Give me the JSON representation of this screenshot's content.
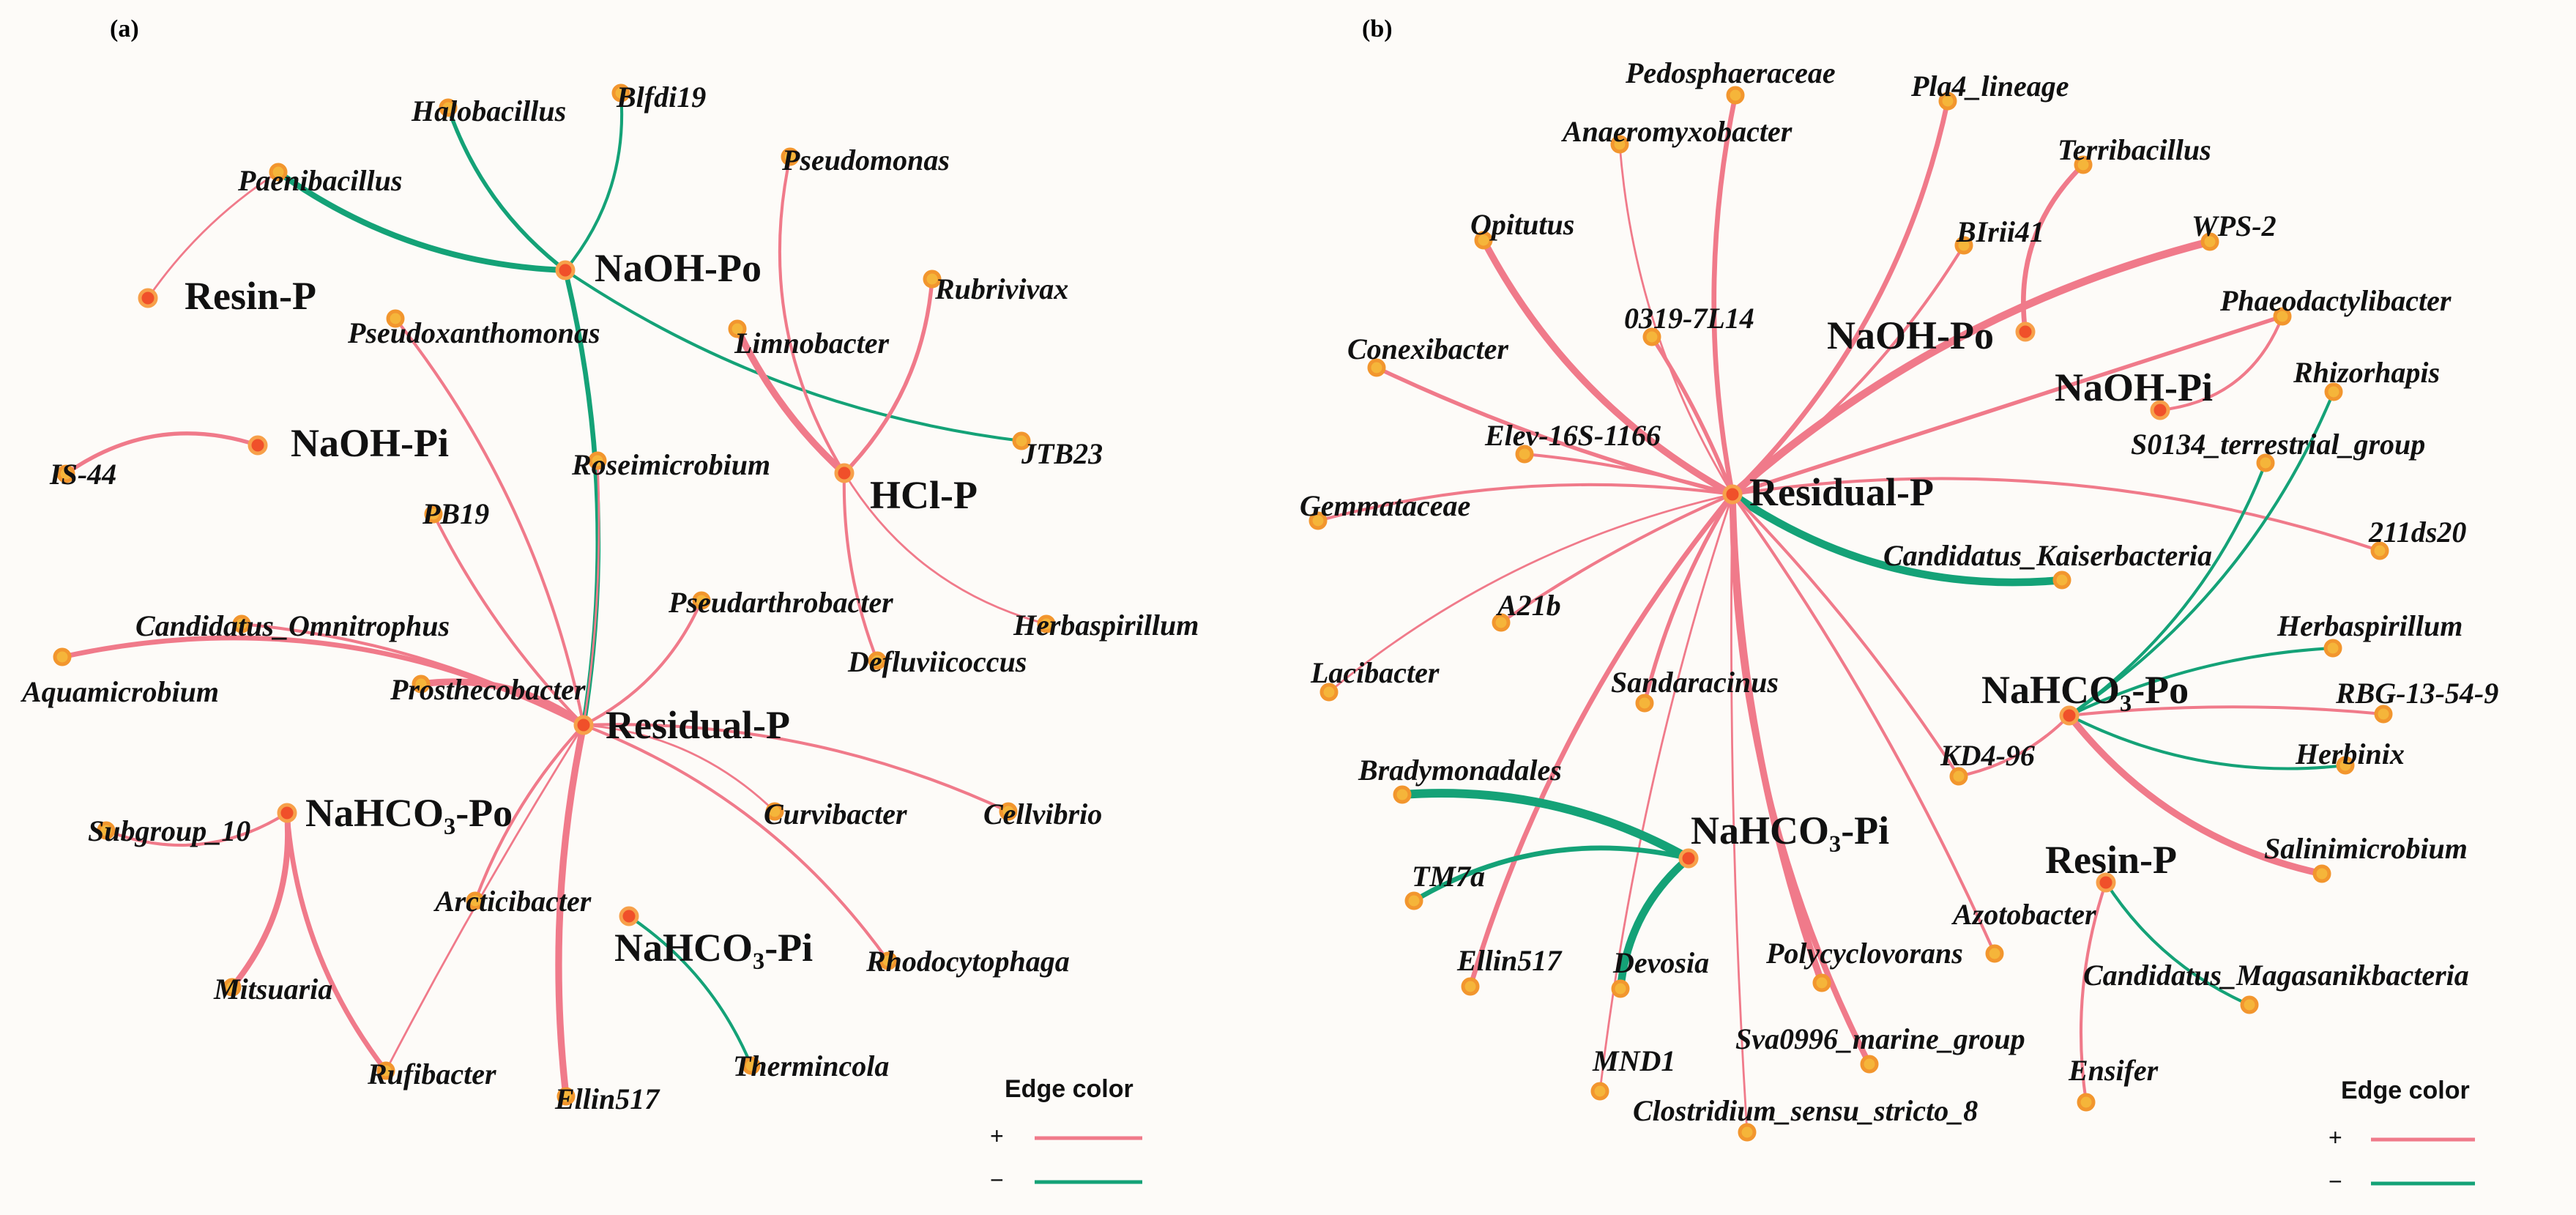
{
  "colors": {
    "positive": "#f07a8a",
    "negative": "#14a277",
    "hub_fill": "#f0502a",
    "hub_ring": "#f7a04a",
    "taxon_fill": "#f5b53a",
    "taxon_ring": "#f2962e"
  },
  "panels": [
    {
      "id": "a",
      "label": "(a)",
      "legend": {
        "title": "Edge color",
        "pos_sign": "+",
        "neg_sign": "−"
      },
      "hubs": [
        {
          "id": "resin",
          "label": "Resin-P"
        },
        {
          "id": "naohpo",
          "label": "NaOH-Po"
        },
        {
          "id": "naohpi",
          "label": "NaOH-Pi"
        },
        {
          "id": "hcl",
          "label": "HCl-P"
        },
        {
          "id": "residual",
          "label": "Residual-P"
        },
        {
          "id": "nahco3po",
          "label": "NaHCO₃-Po"
        },
        {
          "id": "nahco3pi",
          "label": "NaHCO₃-Pi"
        }
      ],
      "taxa": [
        {
          "id": "halobacillus",
          "label": "Halobacillus"
        },
        {
          "id": "blfdi19",
          "label": "Blfdi19"
        },
        {
          "id": "paenibacillus",
          "label": "Paenibacillus"
        },
        {
          "id": "pseudomonas",
          "label": "Pseudomonas"
        },
        {
          "id": "rubrivivax",
          "label": "Rubrivivax"
        },
        {
          "id": "pseudoxanthomonas",
          "label": "Pseudoxanthomonas"
        },
        {
          "id": "limnobacter",
          "label": "Limnobacter"
        },
        {
          "id": "jtb23",
          "label": "JTB23"
        },
        {
          "id": "is44",
          "label": "IS-44"
        },
        {
          "id": "roseimicrobium",
          "label": "Roseimicrobium"
        },
        {
          "id": "pb19",
          "label": "PB19"
        },
        {
          "id": "pseudarthrobacter",
          "label": "Pseudarthrobacter"
        },
        {
          "id": "herbaspirillum",
          "label": "Herbaspirillum"
        },
        {
          "id": "omnitrophus",
          "label": "Candidatus_Omnitrophus"
        },
        {
          "id": "defluviicoccus",
          "label": "Defluviicoccus"
        },
        {
          "id": "aquamicrobium",
          "label": "Aquamicrobium"
        },
        {
          "id": "prosthecobacter",
          "label": "Prosthecobacter"
        },
        {
          "id": "curvibacter",
          "label": "Curvibacter"
        },
        {
          "id": "cellvibrio",
          "label": "Cellvibrio"
        },
        {
          "id": "subgroup10",
          "label": "Subgroup_10"
        },
        {
          "id": "arcticibacter",
          "label": "Arcticibacter"
        },
        {
          "id": "rhodocytophaga",
          "label": "Rhodocytophaga"
        },
        {
          "id": "mitsuaria",
          "label": "Mitsuaria"
        },
        {
          "id": "thermincola",
          "label": "Thermincola"
        },
        {
          "id": "rufibacter",
          "label": "Rufibacter"
        },
        {
          "id": "ellin517",
          "label": "Ellin517"
        }
      ],
      "edges": [
        {
          "from": "naohpo",
          "to": "halobacillus",
          "sign": "-",
          "weight": 3
        },
        {
          "from": "naohpo",
          "to": "blfdi19",
          "sign": "-",
          "weight": 2
        },
        {
          "from": "naohpo",
          "to": "paenibacillus",
          "sign": "-",
          "weight": 5
        },
        {
          "from": "naohpo",
          "to": "jtb23",
          "sign": "-",
          "weight": 2
        },
        {
          "from": "naohpo",
          "to": "residual",
          "sign": "-",
          "weight": 4
        },
        {
          "from": "resin",
          "to": "paenibacillus",
          "sign": "+",
          "weight": 1
        },
        {
          "from": "naohpi",
          "to": "is44",
          "sign": "+",
          "weight": 3
        },
        {
          "from": "hcl",
          "to": "pseudomonas",
          "sign": "+",
          "weight": 2
        },
        {
          "from": "hcl",
          "to": "rubrivivax",
          "sign": "+",
          "weight": 3
        },
        {
          "from": "hcl",
          "to": "limnobacter",
          "sign": "+",
          "weight": 6
        },
        {
          "from": "hcl",
          "to": "herbaspirillum",
          "sign": "+",
          "weight": 1
        },
        {
          "from": "hcl",
          "to": "defluviicoccus",
          "sign": "+",
          "weight": 2
        },
        {
          "from": "residual",
          "to": "pseudoxanthomonas",
          "sign": "+",
          "weight": 2
        },
        {
          "from": "residual",
          "to": "roseimicrobium",
          "sign": "+",
          "weight": 1
        },
        {
          "from": "residual",
          "to": "pb19",
          "sign": "+",
          "weight": 2
        },
        {
          "from": "residual",
          "to": "pseudarthrobacter",
          "sign": "+",
          "weight": 2
        },
        {
          "from": "residual",
          "to": "omnitrophus",
          "sign": "+",
          "weight": 2
        },
        {
          "from": "residual",
          "to": "aquamicrobium",
          "sign": "+",
          "weight": 4
        },
        {
          "from": "residual",
          "to": "prosthecobacter",
          "sign": "+",
          "weight": 6
        },
        {
          "from": "residual",
          "to": "curvibacter",
          "sign": "+",
          "weight": 1
        },
        {
          "from": "residual",
          "to": "cellvibrio",
          "sign": "+",
          "weight": 2
        },
        {
          "from": "residual",
          "to": "arcticibacter",
          "sign": "+",
          "weight": 2
        },
        {
          "from": "residual",
          "to": "rhodocytophaga",
          "sign": "+",
          "weight": 2
        },
        {
          "from": "residual",
          "to": "ellin517",
          "sign": "+",
          "weight": 6
        },
        {
          "from": "residual",
          "to": "rufibacter",
          "sign": "+",
          "weight": 1
        },
        {
          "from": "nahco3po",
          "to": "subgroup10",
          "sign": "+",
          "weight": 2
        },
        {
          "from": "nahco3po",
          "to": "mitsuaria",
          "sign": "+",
          "weight": 5
        },
        {
          "from": "nahco3po",
          "to": "rufibacter",
          "sign": "+",
          "weight": 4
        },
        {
          "from": "nahco3pi",
          "to": "thermincola",
          "sign": "-",
          "weight": 2
        }
      ]
    },
    {
      "id": "b",
      "label": "(b)",
      "legend": {
        "title": "Edge color",
        "pos_sign": "+",
        "neg_sign": "−"
      },
      "hubs": [
        {
          "id": "naohpo",
          "label": "NaOH-Po"
        },
        {
          "id": "naohpi",
          "label": "NaOH-Pi"
        },
        {
          "id": "residual",
          "label": "Residual-P"
        },
        {
          "id": "nahco3po",
          "label": "NaHCO₃-Po"
        },
        {
          "id": "nahco3pi",
          "label": "NaHCO₃-Pi"
        },
        {
          "id": "resin",
          "label": "Resin-P"
        }
      ],
      "taxa": [
        {
          "id": "pedosphaeraceae",
          "label": "Pedosphaeraceae"
        },
        {
          "id": "pla4",
          "label": "Pla4_lineage"
        },
        {
          "id": "anaeromyxobacter",
          "label": "Anaeromyxobacter"
        },
        {
          "id": "terribacillus",
          "label": "Terribacillus"
        },
        {
          "id": "opitutus",
          "label": "Opitutus"
        },
        {
          "id": "birii41",
          "label": "BIrii41"
        },
        {
          "id": "wps2",
          "label": "WPS-2"
        },
        {
          "id": "c0319",
          "label": "0319-7L14"
        },
        {
          "id": "phaeodactylibacter",
          "label": "Phaeodactylibacter"
        },
        {
          "id": "conexibacter",
          "label": "Conexibacter"
        },
        {
          "id": "rhizorhapis",
          "label": "Rhizorhapis"
        },
        {
          "id": "elev16s",
          "label": "Elev-16S-1166"
        },
        {
          "id": "s0134",
          "label": "S0134_terrestrial_group"
        },
        {
          "id": "gemmataceae",
          "label": "Gemmataceae"
        },
        {
          "id": "c211ds20",
          "label": "211ds20"
        },
        {
          "id": "kaiserbacteria",
          "label": "Candidatus_Kaiserbacteria"
        },
        {
          "id": "a21b",
          "label": "A21b"
        },
        {
          "id": "herbaspirillum",
          "label": "Herbaspirillum"
        },
        {
          "id": "lacibacter",
          "label": "Lacibacter"
        },
        {
          "id": "sandaracinus",
          "label": "Sandaracinus"
        },
        {
          "id": "rbg13",
          "label": "RBG-13-54-9"
        },
        {
          "id": "kd496",
          "label": "KD4-96"
        },
        {
          "id": "herbinix",
          "label": "Herbinix"
        },
        {
          "id": "bradymonadales",
          "label": "Bradymonadales"
        },
        {
          "id": "salinimicrobium",
          "label": "Salinimicrobium"
        },
        {
          "id": "tm7a",
          "label": "TM7a"
        },
        {
          "id": "azotobacter",
          "label": "Azotobacter"
        },
        {
          "id": "ellin517",
          "label": "Ellin517"
        },
        {
          "id": "devosia",
          "label": "Devosia"
        },
        {
          "id": "polycyclovorans",
          "label": "Polycyclovorans"
        },
        {
          "id": "magasanik",
          "label": "Candidatus_Magasanikbacteria"
        },
        {
          "id": "sva0996",
          "label": "Sva0996_marine_group"
        },
        {
          "id": "mnd1",
          "label": "MND1"
        },
        {
          "id": "ensifer",
          "label": "Ensifer"
        },
        {
          "id": "clostridium",
          "label": "Clostridium_sensu_stricto_8"
        }
      ],
      "edges": [
        {
          "from": "residual",
          "to": "pedosphaeraceae",
          "sign": "+",
          "weight": 4
        },
        {
          "from": "residual",
          "to": "pla4",
          "sign": "+",
          "weight": 4
        },
        {
          "from": "residual",
          "to": "anaeromyxobacter",
          "sign": "+",
          "weight": 1
        },
        {
          "from": "residual",
          "to": "opitutus",
          "sign": "+",
          "weight": 6
        },
        {
          "from": "residual",
          "to": "birii41",
          "sign": "+",
          "weight": 2
        },
        {
          "from": "residual",
          "to": "wps2",
          "sign": "+",
          "weight": 7
        },
        {
          "from": "residual",
          "to": "c0319",
          "sign": "+",
          "weight": 3
        },
        {
          "from": "residual",
          "to": "phaeodactylibacter",
          "sign": "+",
          "weight": 3
        },
        {
          "from": "residual",
          "to": "conexibacter",
          "sign": "+",
          "weight": 3
        },
        {
          "from": "residual",
          "to": "elev16s",
          "sign": "+",
          "weight": 2
        },
        {
          "from": "residual",
          "to": "gemmataceae",
          "sign": "+",
          "weight": 2
        },
        {
          "from": "residual",
          "to": "c211ds20",
          "sign": "+",
          "weight": 2
        },
        {
          "from": "residual",
          "to": "kaiserbacteria",
          "sign": "-",
          "weight": 7
        },
        {
          "from": "residual",
          "to": "a21b",
          "sign": "+",
          "weight": 2
        },
        {
          "from": "residual",
          "to": "lacibacter",
          "sign": "+",
          "weight": 1
        },
        {
          "from": "residual",
          "to": "sandaracinus",
          "sign": "+",
          "weight": 3
        },
        {
          "from": "residual",
          "to": "kd496",
          "sign": "+",
          "weight": 2
        },
        {
          "from": "residual",
          "to": "ellin517",
          "sign": "+",
          "weight": 4
        },
        {
          "from": "residual",
          "to": "polycyclovorans",
          "sign": "+",
          "weight": 6
        },
        {
          "from": "residual",
          "to": "sva0996",
          "sign": "+",
          "weight": 5
        },
        {
          "from": "residual",
          "to": "mnd1",
          "sign": "+",
          "weight": 1
        },
        {
          "from": "residual",
          "to": "azotobacter",
          "sign": "+",
          "weight": 2
        },
        {
          "from": "residual",
          "to": "clostridium",
          "sign": "+",
          "weight": 1
        },
        {
          "from": "naohpo",
          "to": "terribacillus",
          "sign": "+",
          "weight": 4
        },
        {
          "from": "naohpi",
          "to": "phaeodactylibacter",
          "sign": "+",
          "weight": 2
        },
        {
          "from": "nahco3po",
          "to": "rhizorhapis",
          "sign": "-",
          "weight": 2
        },
        {
          "from": "nahco3po",
          "to": "s0134",
          "sign": "-",
          "weight": 2
        },
        {
          "from": "nahco3po",
          "to": "herbaspirillum",
          "sign": "-",
          "weight": 2
        },
        {
          "from": "nahco3po",
          "to": "rbg13",
          "sign": "+",
          "weight": 2
        },
        {
          "from": "nahco3po",
          "to": "herbinix",
          "sign": "-",
          "weight": 2
        },
        {
          "from": "nahco3po",
          "to": "salinimicrobium",
          "sign": "+",
          "weight": 6
        },
        {
          "from": "nahco3po",
          "to": "kd496",
          "sign": "+",
          "weight": 2
        },
        {
          "from": "nahco3pi",
          "to": "bradymonadales",
          "sign": "-",
          "weight": 8
        },
        {
          "from": "nahco3pi",
          "to": "tm7a",
          "sign": "-",
          "weight": 4
        },
        {
          "from": "nahco3pi",
          "to": "devosia",
          "sign": "-",
          "weight": 7
        },
        {
          "from": "resin",
          "to": "magasanik",
          "sign": "-",
          "weight": 2
        },
        {
          "from": "resin",
          "to": "ensifer",
          "sign": "+",
          "weight": 2
        }
      ]
    }
  ]
}
